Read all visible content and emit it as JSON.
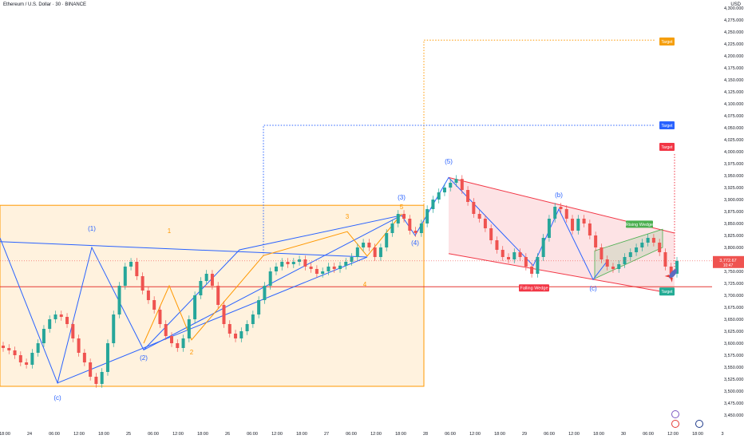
{
  "header": {
    "title": "Ethereum / U.S. Dollar · 30 · BINANCE",
    "currency": "USD"
  },
  "chart_data": {
    "type": "candlestick",
    "ylim": [
      3450,
      4300
    ],
    "price_axis": {
      "min": 3450,
      "max": 4300,
      "step": 25
    },
    "time_axis": [
      "18:00",
      "24",
      "06:00",
      "12:00",
      "18:00",
      "25",
      "06:00",
      "12:00",
      "18:00",
      "26",
      "06:00",
      "12:00",
      "18:00",
      "27",
      "06:00",
      "12:00",
      "18:00",
      "28",
      "06:00",
      "12:00",
      "18:00",
      "29",
      "06:00",
      "12:00",
      "18:00",
      "30",
      "06:00",
      "12:00",
      "18:00",
      "3"
    ],
    "close_series": [
      3590,
      3585,
      3575,
      3560,
      3555,
      3580,
      3600,
      3630,
      3650,
      3660,
      3655,
      3640,
      3610,
      3580,
      3560,
      3530,
      3515,
      3540,
      3600,
      3660,
      3720,
      3760,
      3770,
      3740,
      3710,
      3690,
      3670,
      3640,
      3615,
      3600,
      3590,
      3610,
      3650,
      3700,
      3730,
      3745,
      3720,
      3680,
      3640,
      3620,
      3610,
      3625,
      3640,
      3660,
      3690,
      3720,
      3750,
      3760,
      3770,
      3765,
      3770,
      3775,
      3760,
      3755,
      3745,
      3750,
      3760,
      3755,
      3762,
      3770,
      3780,
      3800,
      3810,
      3800,
      3780,
      3800,
      3830,
      3850,
      3870,
      3860,
      3835,
      3830,
      3850,
      3880,
      3900,
      3915,
      3925,
      3935,
      3943,
      3920,
      3895,
      3870,
      3860,
      3840,
      3815,
      3795,
      3780,
      3775,
      3790,
      3780,
      3760,
      3745,
      3780,
      3820,
      3860,
      3885,
      3880,
      3860,
      3835,
      3860,
      3850,
      3825,
      3800,
      3775,
      3760,
      3755,
      3765,
      3780,
      3790,
      3800,
      3810,
      3820,
      3810,
      3790,
      3760,
      3745,
      3772
    ],
    "current_price": "3,772.67",
    "countdown": "10:47",
    "horizontal_level": 3718,
    "wave_labels": [
      "(1)",
      "(2)",
      "(3)",
      "(4)",
      "(5)",
      "(a)",
      "(b)",
      "(c)",
      "(c)"
    ],
    "subwave_labels": [
      "1",
      "2",
      "3",
      "4",
      "5"
    ],
    "pattern_labels": {
      "falling_wedge": "Falling Wedge",
      "rising_wedge": "Rising Wedge"
    },
    "targets": [
      {
        "label": "Target",
        "price": 4230,
        "color": "#f59e0b"
      },
      {
        "label": "Target",
        "price": 4055,
        "color": "#2962ff"
      },
      {
        "label": "Target",
        "price": 4010,
        "color": "#f23645"
      },
      {
        "label": "Target",
        "price": 3708,
        "color": "#22ab94"
      }
    ]
  },
  "colors": {
    "up": "#26a69a",
    "down": "#ef5350",
    "orange_zone": "#ff9800",
    "pink_channel": "#f23645",
    "wave_blue": "#2962ff",
    "axis_text": "#131722"
  }
}
